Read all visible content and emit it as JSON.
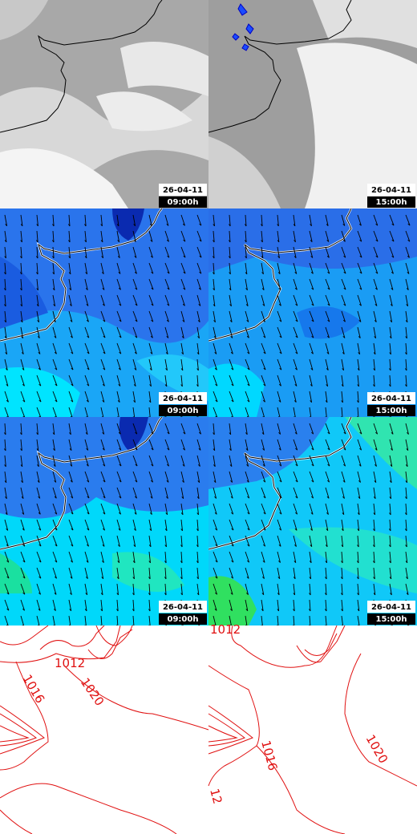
{
  "panels": [
    [
      {
        "date": "26-04-11",
        "time": "09:00h"
      },
      {
        "date": "26-04-11",
        "time": "15:00h"
      }
    ],
    [
      {
        "date": "26-04-11",
        "time": "09:00h"
      },
      {
        "date": "26-04-11",
        "time": "15:00h"
      }
    ],
    [
      {
        "date": "26-04-11",
        "time": "09:00h"
      },
      {
        "date": "26-04-11",
        "time": "15:00h"
      }
    ]
  ],
  "isobars": {
    "left": [
      "1016",
      "1012",
      "1020"
    ],
    "right": [
      "1012",
      "1016",
      "1020",
      "12"
    ]
  }
}
